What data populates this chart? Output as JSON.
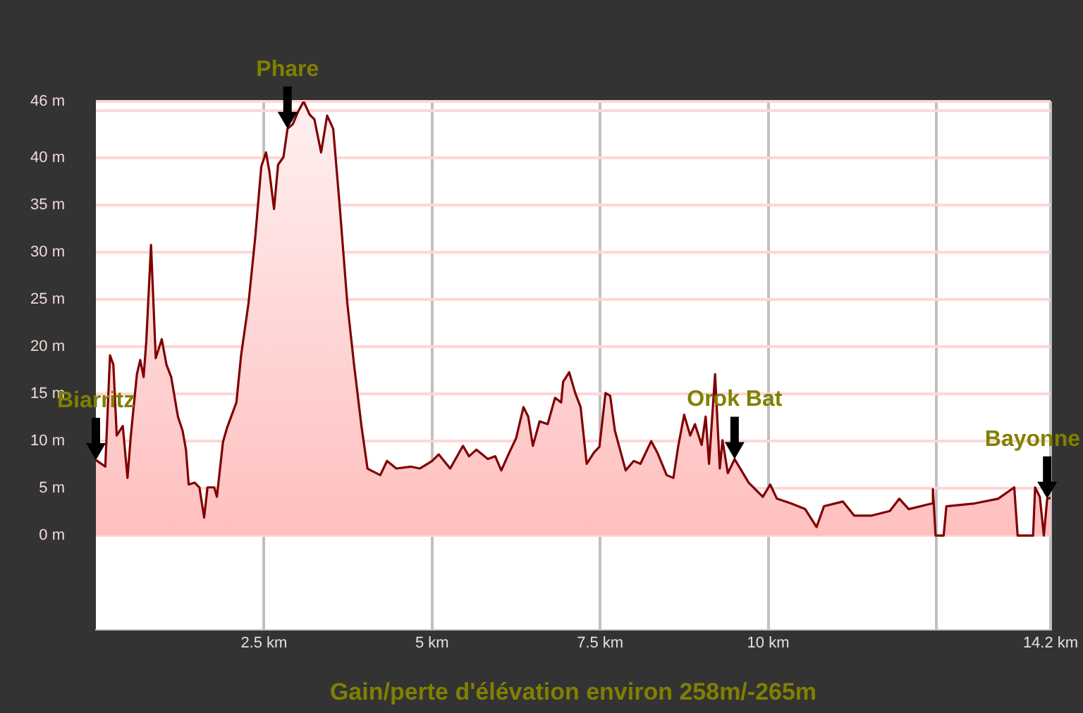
{
  "chart_data": {
    "type": "area",
    "xlabel": "Gain/perte d'élévation environ 258m/-265m",
    "x": [
      0,
      0.14,
      0.21,
      0.26,
      0.31,
      0.4,
      0.47,
      0.52,
      0.61,
      0.66,
      0.71,
      0.75,
      0.82,
      0.89,
      0.98,
      1.05,
      1.12,
      1.22,
      1.29,
      1.34,
      1.38,
      1.47,
      1.54,
      1.61,
      1.66,
      1.76,
      1.8,
      1.89,
      1.95,
      2.09,
      2.16,
      2.27,
      2.37,
      2.46,
      2.53,
      2.58,
      2.65,
      2.71,
      2.79,
      2.85,
      2.93,
      3,
      3.09,
      3.18,
      3.25,
      3.35,
      3.44,
      3.53,
      3.63,
      3.74,
      3.84,
      3.95,
      4.04,
      4.09,
      4.23,
      4.33,
      4.47,
      4.68,
      4.82,
      5,
      5.1,
      5.27,
      5.46,
      5.55,
      5.66,
      5.83,
      5.94,
      6.03,
      6.15,
      6.25,
      6.36,
      6.43,
      6.5,
      6.6,
      6.72,
      6.83,
      6.92,
      6.95,
      7.04,
      7.13,
      7.21,
      7.3,
      7.41,
      7.49,
      7.58,
      7.65,
      7.72,
      7.88,
      8,
      8.1,
      8.26,
      8.35,
      8.49,
      8.59,
      8.66,
      8.75,
      8.84,
      8.91,
      9.01,
      9.07,
      9.12,
      9.21,
      9.28,
      9.32,
      9.4,
      9.5,
      9.71,
      9.92,
      10.03,
      10.13,
      10.34,
      10.55,
      10.72,
      10.83,
      11.11,
      11.28,
      11.53,
      11.81,
      11.95,
      12.09,
      12.44,
      12.45,
      12.49,
      12.61,
      12.65,
      13.07,
      13.42,
      13.66,
      13.71,
      13.94,
      13.97,
      14.04,
      14.1,
      14.15,
      14.2
    ],
    "series": [
      {
        "color": "#800000",
        "values": [
          8,
          7.3,
          19.1,
          18.1,
          10.6,
          11.6,
          6.1,
          10.6,
          17.1,
          18.6,
          16.8,
          20.6,
          30.8,
          18.8,
          20.8,
          18.1,
          16.8,
          12.6,
          11.1,
          9.1,
          5.4,
          5.6,
          5.1,
          1.9,
          5.1,
          5.1,
          4.1,
          9.9,
          11.4,
          14.1,
          19.1,
          24.6,
          31.6,
          39.1,
          40.6,
          38.6,
          34.6,
          39.3,
          40.1,
          43.1,
          43.6,
          44.8,
          46,
          44.6,
          44.1,
          40.6,
          44.5,
          43.1,
          34.6,
          24.6,
          18.1,
          11.6,
          7.1,
          6.9,
          6.4,
          7.9,
          7.1,
          7.3,
          7.1,
          7.9,
          8.6,
          7.1,
          9.5,
          8.4,
          9.1,
          8.1,
          8.4,
          6.9,
          8.8,
          10.3,
          13.6,
          12.6,
          9.5,
          12.1,
          11.8,
          14.6,
          14.1,
          16.3,
          17.3,
          15.1,
          13.6,
          7.6,
          8.8,
          9.4,
          15.1,
          14.8,
          11.1,
          6.9,
          7.9,
          7.6,
          10,
          8.8,
          6.4,
          6.1,
          9.4,
          12.8,
          10.6,
          11.8,
          9.6,
          12.6,
          7.6,
          17.1,
          7.1,
          10.1,
          6.6,
          8.1,
          5.6,
          4.1,
          5.4,
          3.9,
          3.4,
          2.8,
          0.9,
          3.1,
          3.6,
          2.1,
          2.1,
          2.6,
          3.9,
          2.8,
          3.4,
          4.9,
          0,
          0,
          3.1,
          3.4,
          3.9,
          5.1,
          0,
          0,
          5.1,
          4.1,
          0,
          3.9,
          4
        ]
      }
    ],
    "xlim": [
      0,
      14.2
    ],
    "xticks": [
      {
        "value": 2.5,
        "label": "2.5 km"
      },
      {
        "value": 5,
        "label": "5 km"
      },
      {
        "value": 7.5,
        "label": "7.5 km"
      },
      {
        "value": 10,
        "label": "10 km"
      },
      {
        "value": 12.5,
        "label": null
      },
      {
        "value": 14.2,
        "label": "14.2 km"
      }
    ],
    "ylim": [
      -10,
      46
    ],
    "yticks": [
      {
        "value": 0,
        "label": "0 m"
      },
      {
        "value": 5,
        "label": "5 m"
      },
      {
        "value": 10,
        "label": "10 m"
      },
      {
        "value": 15,
        "label": "15 m"
      },
      {
        "value": 20,
        "label": "20 m"
      },
      {
        "value": 25,
        "label": "25 m"
      },
      {
        "value": 30,
        "label": "30 m"
      },
      {
        "value": 35,
        "label": "35 m"
      },
      {
        "value": 40,
        "label": "40 m"
      },
      {
        "value": 45,
        "label": null
      },
      {
        "value": 46,
        "label": "46 m"
      }
    ],
    "annotations": [
      {
        "text": "Biarritz",
        "x": 0,
        "y": 8
      },
      {
        "text": "Phare",
        "x": 2.85,
        "y": 43.1
      },
      {
        "text": "Orok Bat",
        "x": 9.5,
        "y": 8.1
      },
      {
        "text": "Bayonne",
        "x": 14.15,
        "y": 3.9
      }
    ],
    "grid": true,
    "legend": false,
    "marker": "none",
    "line_style": "solid"
  }
}
